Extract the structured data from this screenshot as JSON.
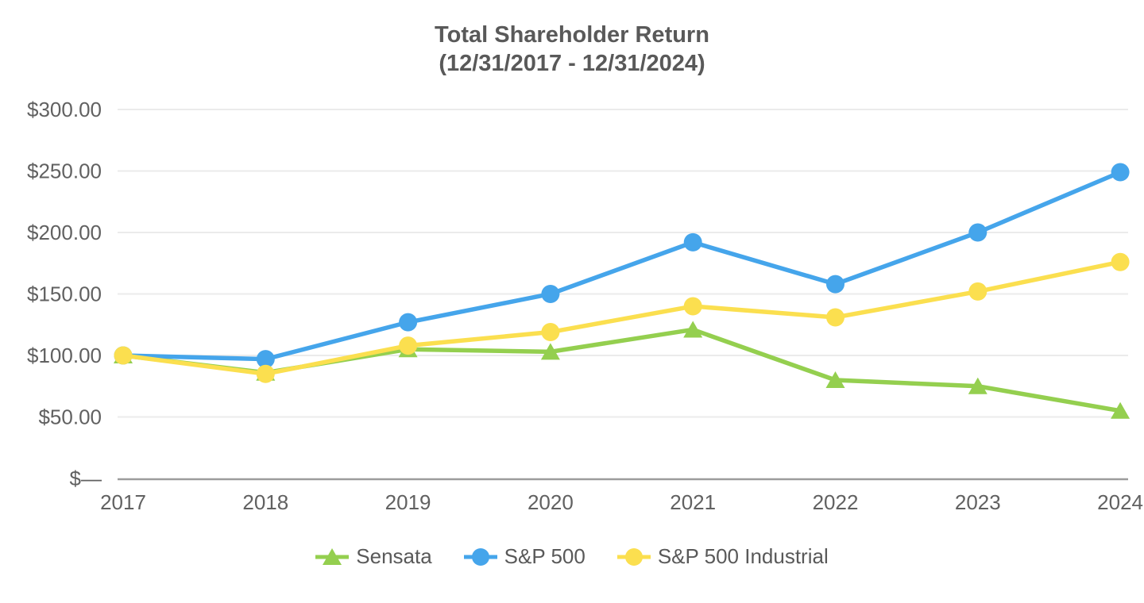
{
  "chart_data": {
    "type": "line",
    "title": "Total Shareholder Return",
    "subtitle": "(12/31/2017 - 12/31/2024)",
    "categories": [
      "2017",
      "2018",
      "2019",
      "2020",
      "2021",
      "2022",
      "2023",
      "2024"
    ],
    "series": [
      {
        "name": "Sensata",
        "color": "#94CF4F",
        "marker": "triangle",
        "values": [
          100,
          86,
          105,
          103,
          121,
          80,
          75,
          55
        ]
      },
      {
        "name": "S&P 500",
        "color": "#45A5EB",
        "marker": "circle",
        "values": [
          100,
          97,
          127,
          150,
          192,
          158,
          200,
          249
        ]
      },
      {
        "name": "S&P 500 Industrial",
        "color": "#FBDF4F",
        "marker": "circle",
        "values": [
          100,
          85,
          108,
          119,
          140,
          131,
          152,
          176
        ]
      }
    ],
    "y_axis": {
      "ticks": [
        {
          "label": "$300.00",
          "value": 300
        },
        {
          "label": "$250.00",
          "value": 250
        },
        {
          "label": "$200.00",
          "value": 200
        },
        {
          "label": "$150.00",
          "value": 150
        },
        {
          "label": "$100.00",
          "value": 100
        },
        {
          "label": "$50.00",
          "value": 50
        },
        {
          "label": "$—",
          "value": 0
        }
      ],
      "range": [
        0,
        300
      ]
    },
    "xlabel": "",
    "ylabel": "",
    "grid": true,
    "legend_position": "bottom",
    "styles": {
      "gridline_color": "#EBEBEB",
      "axis_line_color": "#9C9C9C",
      "title_color": "#595959",
      "tick_label_color": "#616161"
    }
  }
}
